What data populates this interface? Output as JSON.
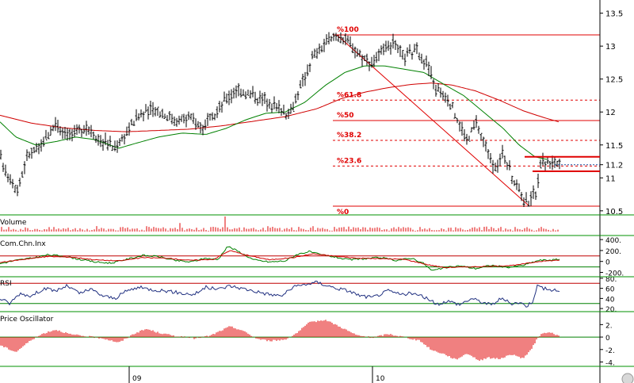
{
  "chart_data": [
    {
      "panel": "price",
      "type": "ohlc",
      "y_ticks": [
        "13.5",
        "13",
        "12.5",
        "12",
        "11.5",
        "11.2",
        "11",
        "10.5"
      ],
      "ylim": [
        10.45,
        13.7
      ],
      "x_tick_labels": [
        "09",
        "10"
      ],
      "fibonacci": {
        "high": 13.17,
        "low": 10.57,
        "levels": [
          {
            "label": "%100",
            "value": 13.17
          },
          {
            "label": "%61.8",
            "value": 12.18
          },
          {
            "label": "%50",
            "value": 11.87
          },
          {
            "label": "%38.2",
            "value": 11.57
          },
          {
            "label": "%23.6",
            "value": 11.18
          },
          {
            "label": "%0",
            "value": 10.57
          }
        ],
        "extra_line": {
          "value": 11.57
        }
      },
      "ma_short_color": "#008000",
      "ma_long_color": "#d00000",
      "moving_average_short": [
        [
          0,
          11.85
        ],
        [
          20,
          11.62
        ],
        [
          45,
          11.5
        ],
        [
          70,
          11.55
        ],
        [
          95,
          11.62
        ],
        [
          120,
          11.58
        ],
        [
          150,
          11.45
        ],
        [
          170,
          11.52
        ],
        [
          200,
          11.62
        ],
        [
          230,
          11.68
        ],
        [
          260,
          11.66
        ],
        [
          285,
          11.75
        ],
        [
          310,
          11.88
        ],
        [
          335,
          11.98
        ],
        [
          360,
          12.0
        ],
        [
          385,
          12.15
        ],
        [
          410,
          12.4
        ],
        [
          435,
          12.6
        ],
        [
          460,
          12.7
        ],
        [
          485,
          12.7
        ],
        [
          510,
          12.65
        ],
        [
          535,
          12.6
        ],
        [
          560,
          12.42
        ],
        [
          585,
          12.25
        ],
        [
          610,
          12.0
        ],
        [
          635,
          11.75
        ],
        [
          655,
          11.5
        ],
        [
          675,
          11.32
        ],
        [
          690,
          11.28
        ]
      ],
      "moving_average_long": [
        [
          0,
          11.95
        ],
        [
          40,
          11.83
        ],
        [
          80,
          11.76
        ],
        [
          120,
          11.72
        ],
        [
          160,
          11.7
        ],
        [
          200,
          11.72
        ],
        [
          240,
          11.74
        ],
        [
          280,
          11.79
        ],
        [
          320,
          11.86
        ],
        [
          360,
          11.93
        ],
        [
          400,
          12.05
        ],
        [
          430,
          12.2
        ],
        [
          460,
          12.3
        ],
        [
          490,
          12.37
        ],
        [
          520,
          12.42
        ],
        [
          545,
          12.44
        ],
        [
          570,
          12.41
        ],
        [
          600,
          12.32
        ],
        [
          630,
          12.18
        ],
        [
          660,
          12.02
        ],
        [
          685,
          11.92
        ],
        [
          705,
          11.85
        ]
      ],
      "trend_line": {
        "from": [
          425,
          13.17
        ],
        "to": [
          668,
          10.57
        ],
        "color": "#e00000"
      },
      "price_anchors": [
        [
          0,
          11.3
        ],
        [
          10,
          11.05
        ],
        [
          22,
          10.82
        ],
        [
          35,
          11.35
        ],
        [
          50,
          11.45
        ],
        [
          70,
          11.82
        ],
        [
          90,
          11.65
        ],
        [
          110,
          11.78
        ],
        [
          125,
          11.6
        ],
        [
          145,
          11.45
        ],
        [
          160,
          11.7
        ],
        [
          175,
          11.95
        ],
        [
          195,
          12.05
        ],
        [
          220,
          11.88
        ],
        [
          240,
          11.9
        ],
        [
          255,
          11.78
        ],
        [
          270,
          11.92
        ],
        [
          285,
          12.2
        ],
        [
          300,
          12.35
        ],
        [
          320,
          12.25
        ],
        [
          340,
          12.15
        ],
        [
          355,
          12.05
        ],
        [
          365,
          11.95
        ],
        [
          375,
          12.25
        ],
        [
          385,
          12.55
        ],
        [
          395,
          12.85
        ],
        [
          410,
          13.02
        ],
        [
          425,
          13.17
        ],
        [
          440,
          13.05
        ],
        [
          455,
          12.85
        ],
        [
          470,
          12.75
        ],
        [
          480,
          12.88
        ],
        [
          495,
          13.05
        ],
        [
          510,
          12.82
        ],
        [
          525,
          12.95
        ],
        [
          540,
          12.7
        ],
        [
          550,
          12.35
        ],
        [
          565,
          12.2
        ],
        [
          575,
          11.95
        ],
        [
          590,
          11.55
        ],
        [
          600,
          11.85
        ],
        [
          610,
          11.55
        ],
        [
          620,
          11.3
        ],
        [
          625,
          11.1
        ],
        [
          635,
          11.4
        ],
        [
          645,
          11.05
        ],
        [
          655,
          10.8
        ],
        [
          665,
          10.62
        ],
        [
          672,
          10.75
        ],
        [
          678,
          10.82
        ],
        [
          682,
          11.22
        ],
        [
          692,
          11.25
        ],
        [
          700,
          11.25
        ],
        [
          706,
          11.18
        ]
      ]
    },
    {
      "panel": "volume",
      "type": "bar",
      "title": "Volume",
      "color": "#e00000"
    },
    {
      "panel": "cci",
      "type": "line",
      "title": "Com.Chn.Inx",
      "y_ticks": [
        "400.",
        "200.",
        "0",
        "-200."
      ],
      "ylim": [
        -280,
        460
      ],
      "reference_lines": [
        100,
        -100
      ],
      "series": [
        {
          "color": "#008000",
          "anchors": [
            [
              0,
              -40
            ],
            [
              20,
              20
            ],
            [
              40,
              60
            ],
            [
              60,
              120
            ],
            [
              80,
              100
            ],
            [
              100,
              40
            ],
            [
              120,
              -10
            ],
            [
              140,
              -30
            ],
            [
              160,
              40
            ],
            [
              180,
              110
            ],
            [
              200,
              90
            ],
            [
              220,
              20
            ],
            [
              240,
              -10
            ],
            [
              260,
              60
            ],
            [
              275,
              30
            ],
            [
              287,
              280
            ],
            [
              300,
              190
            ],
            [
              320,
              30
            ],
            [
              340,
              -10
            ],
            [
              360,
              10
            ],
            [
              375,
              130
            ],
            [
              390,
              180
            ],
            [
              405,
              120
            ],
            [
              420,
              90
            ],
            [
              440,
              30
            ],
            [
              460,
              50
            ],
            [
              480,
              70
            ],
            [
              500,
              20
            ],
            [
              520,
              60
            ],
            [
              535,
              -40
            ],
            [
              545,
              -170
            ],
            [
              560,
              -120
            ],
            [
              580,
              -80
            ],
            [
              600,
              -130
            ],
            [
              620,
              -70
            ],
            [
              640,
              -110
            ],
            [
              660,
              -70
            ],
            [
              680,
              20
            ],
            [
              700,
              30
            ],
            [
              706,
              40
            ]
          ]
        },
        {
          "color": "#d00000",
          "anchors": [
            [
              0,
              -20
            ],
            [
              30,
              40
            ],
            [
              60,
              90
            ],
            [
              90,
              80
            ],
            [
              120,
              30
            ],
            [
              150,
              10
            ],
            [
              180,
              70
            ],
            [
              210,
              60
            ],
            [
              240,
              20
            ],
            [
              270,
              40
            ],
            [
              290,
              200
            ],
            [
              310,
              120
            ],
            [
              340,
              30
            ],
            [
              370,
              70
            ],
            [
              395,
              140
            ],
            [
              420,
              100
            ],
            [
              450,
              60
            ],
            [
              480,
              50
            ],
            [
              510,
              40
            ],
            [
              540,
              -60
            ],
            [
              560,
              -110
            ],
            [
              590,
              -100
            ],
            [
              620,
              -90
            ],
            [
              650,
              -70
            ],
            [
              680,
              0
            ],
            [
              706,
              25
            ]
          ]
        }
      ]
    },
    {
      "panel": "rsi",
      "type": "line",
      "title": "RSI",
      "y_ticks": [
        "80.",
        "60",
        "40",
        "20."
      ],
      "ylim": [
        17,
        83
      ],
      "reference_lines": [
        70,
        30
      ],
      "series": [
        {
          "color": "#203080",
          "anchors": [
            [
              0,
              40
            ],
            [
              12,
              30
            ],
            [
              25,
              50
            ],
            [
              40,
              45
            ],
            [
              55,
              60
            ],
            [
              70,
              55
            ],
            [
              85,
              65
            ],
            [
              100,
              50
            ],
            [
              115,
              58
            ],
            [
              130,
              45
            ],
            [
              145,
              40
            ],
            [
              160,
              55
            ],
            [
              175,
              62
            ],
            [
              190,
              58
            ],
            [
              210,
              55
            ],
            [
              230,
              50
            ],
            [
              245,
              48
            ],
            [
              260,
              62
            ],
            [
              275,
              58
            ],
            [
              290,
              65
            ],
            [
              305,
              60
            ],
            [
              320,
              55
            ],
            [
              340,
              48
            ],
            [
              355,
              45
            ],
            [
              370,
              62
            ],
            [
              385,
              68
            ],
            [
              400,
              72
            ],
            [
              420,
              62
            ],
            [
              440,
              55
            ],
            [
              455,
              45
            ],
            [
              470,
              42
            ],
            [
              490,
              55
            ],
            [
              505,
              48
            ],
            [
              520,
              50
            ],
            [
              540,
              40
            ],
            [
              550,
              28
            ],
            [
              565,
              35
            ],
            [
              580,
              28
            ],
            [
              595,
              40
            ],
            [
              610,
              32
            ],
            [
              620,
              27
            ],
            [
              632,
              40
            ],
            [
              645,
              30
            ],
            [
              655,
              32
            ],
            [
              665,
              25
            ],
            [
              672,
              35
            ],
            [
              678,
              65
            ],
            [
              690,
              58
            ],
            [
              706,
              55
            ]
          ]
        }
      ]
    },
    {
      "panel": "price_oscillator",
      "type": "bar",
      "title": "Price Oscillator",
      "color": "#e00000",
      "y_ticks": [
        "2.",
        "0",
        "-2.",
        "-4."
      ],
      "ylim": [
        -4.7,
        3.7
      ],
      "anchors": [
        [
          0,
          -1.3
        ],
        [
          20,
          -2.4
        ],
        [
          40,
          -0.4
        ],
        [
          55,
          0.6
        ],
        [
          70,
          1.2
        ],
        [
          90,
          0.4
        ],
        [
          110,
          0.1
        ],
        [
          130,
          -0.2
        ],
        [
          150,
          -0.9
        ],
        [
          170,
          0.6
        ],
        [
          185,
          1.3
        ],
        [
          200,
          0.7
        ],
        [
          220,
          0.2
        ],
        [
          245,
          -0.2
        ],
        [
          265,
          0.2
        ],
        [
          290,
          1.7
        ],
        [
          305,
          1.1
        ],
        [
          325,
          -0.3
        ],
        [
          340,
          -0.6
        ],
        [
          360,
          -0.4
        ],
        [
          375,
          0.7
        ],
        [
          390,
          2.3
        ],
        [
          410,
          2.8
        ],
        [
          430,
          1.6
        ],
        [
          450,
          0.3
        ],
        [
          470,
          -0.1
        ],
        [
          490,
          0.5
        ],
        [
          510,
          0.0
        ],
        [
          530,
          -0.6
        ],
        [
          545,
          -2.1
        ],
        [
          560,
          -2.7
        ],
        [
          575,
          -3.6
        ],
        [
          590,
          -2.6
        ],
        [
          605,
          -3.8
        ],
        [
          615,
          -3.3
        ],
        [
          630,
          -3.5
        ],
        [
          645,
          -2.8
        ],
        [
          660,
          -3.4
        ],
        [
          670,
          -2.1
        ],
        [
          680,
          0.2
        ],
        [
          690,
          0.8
        ],
        [
          706,
          0.3
        ]
      ]
    }
  ]
}
